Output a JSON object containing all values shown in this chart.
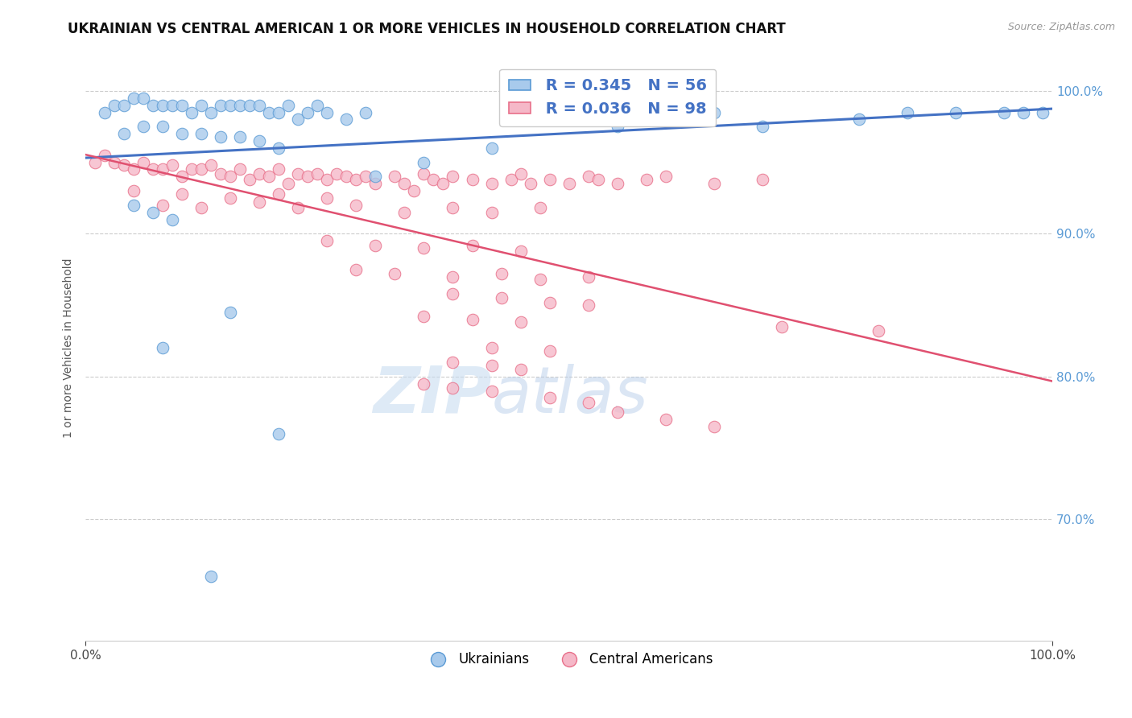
{
  "title": "UKRAINIAN VS CENTRAL AMERICAN 1 OR MORE VEHICLES IN HOUSEHOLD CORRELATION CHART",
  "source": "Source: ZipAtlas.com",
  "ylabel": "1 or more Vehicles in Household",
  "watermark_zip": "ZIP",
  "watermark_atlas": "atlas",
  "legend_blue_label": "Ukrainians",
  "legend_pink_label": "Central Americans",
  "blue_R": 0.345,
  "blue_N": 56,
  "pink_R": 0.036,
  "pink_N": 98,
  "xmin": 0.0,
  "xmax": 1.0,
  "ymin": 0.615,
  "ymax": 1.025,
  "ytick_labels": [
    "70.0%",
    "80.0%",
    "90.0%",
    "100.0%"
  ],
  "ytick_vals": [
    0.7,
    0.8,
    0.9,
    1.0
  ],
  "xtick_labels": [
    "0.0%",
    "100.0%"
  ],
  "xtick_vals": [
    0.0,
    1.0
  ],
  "blue_color": "#A8CAEC",
  "pink_color": "#F5B8C8",
  "blue_edge_color": "#5B9BD5",
  "pink_edge_color": "#E8708A",
  "blue_line_color": "#4472C4",
  "pink_line_color": "#E05070",
  "tick_color": "#5B9BD5",
  "background_color": "#FFFFFF",
  "blue_points_x": [
    0.02,
    0.03,
    0.04,
    0.05,
    0.06,
    0.07,
    0.08,
    0.09,
    0.1,
    0.11,
    0.12,
    0.13,
    0.14,
    0.15,
    0.16,
    0.17,
    0.18,
    0.19,
    0.2,
    0.21,
    0.22,
    0.23,
    0.24,
    0.25,
    0.27,
    0.29,
    0.04,
    0.06,
    0.08,
    0.1,
    0.12,
    0.14,
    0.16,
    0.18,
    0.2,
    0.3,
    0.35,
    0.42,
    0.5,
    0.55,
    0.6,
    0.65,
    0.7,
    0.8,
    0.85,
    0.9,
    0.95,
    0.97,
    0.99,
    0.05,
    0.07,
    0.09,
    0.15,
    0.2,
    0.08,
    0.13
  ],
  "blue_points_y": [
    0.985,
    0.99,
    0.99,
    0.995,
    0.995,
    0.99,
    0.99,
    0.99,
    0.99,
    0.985,
    0.99,
    0.985,
    0.99,
    0.99,
    0.99,
    0.99,
    0.99,
    0.985,
    0.985,
    0.99,
    0.98,
    0.985,
    0.99,
    0.985,
    0.98,
    0.985,
    0.97,
    0.975,
    0.975,
    0.97,
    0.97,
    0.968,
    0.968,
    0.965,
    0.96,
    0.94,
    0.95,
    0.96,
    0.98,
    0.975,
    0.985,
    0.985,
    0.975,
    0.98,
    0.985,
    0.985,
    0.985,
    0.985,
    0.985,
    0.92,
    0.915,
    0.91,
    0.845,
    0.76,
    0.82,
    0.66
  ],
  "pink_points_x": [
    0.01,
    0.02,
    0.03,
    0.04,
    0.05,
    0.06,
    0.07,
    0.08,
    0.09,
    0.1,
    0.11,
    0.12,
    0.13,
    0.14,
    0.15,
    0.16,
    0.17,
    0.18,
    0.19,
    0.2,
    0.21,
    0.22,
    0.23,
    0.24,
    0.25,
    0.26,
    0.27,
    0.28,
    0.29,
    0.3,
    0.32,
    0.33,
    0.34,
    0.35,
    0.36,
    0.37,
    0.38,
    0.4,
    0.42,
    0.44,
    0.45,
    0.46,
    0.48,
    0.5,
    0.52,
    0.53,
    0.55,
    0.58,
    0.6,
    0.65,
    0.7,
    0.05,
    0.1,
    0.15,
    0.2,
    0.25,
    0.08,
    0.12,
    0.18,
    0.22,
    0.28,
    0.33,
    0.38,
    0.42,
    0.47,
    0.25,
    0.3,
    0.35,
    0.4,
    0.45,
    0.28,
    0.32,
    0.38,
    0.43,
    0.47,
    0.52,
    0.38,
    0.43,
    0.48,
    0.52,
    0.35,
    0.4,
    0.45,
    0.72,
    0.82,
    0.42,
    0.48,
    0.38,
    0.42,
    0.45,
    0.35,
    0.38,
    0.42,
    0.48,
    0.52,
    0.55,
    0.6,
    0.65
  ],
  "pink_points_y": [
    0.95,
    0.955,
    0.95,
    0.948,
    0.945,
    0.95,
    0.945,
    0.945,
    0.948,
    0.94,
    0.945,
    0.945,
    0.948,
    0.942,
    0.94,
    0.945,
    0.938,
    0.942,
    0.94,
    0.945,
    0.935,
    0.942,
    0.94,
    0.942,
    0.938,
    0.942,
    0.94,
    0.938,
    0.94,
    0.935,
    0.94,
    0.935,
    0.93,
    0.942,
    0.938,
    0.935,
    0.94,
    0.938,
    0.935,
    0.938,
    0.942,
    0.935,
    0.938,
    0.935,
    0.94,
    0.938,
    0.935,
    0.938,
    0.94,
    0.935,
    0.938,
    0.93,
    0.928,
    0.925,
    0.928,
    0.925,
    0.92,
    0.918,
    0.922,
    0.918,
    0.92,
    0.915,
    0.918,
    0.915,
    0.918,
    0.895,
    0.892,
    0.89,
    0.892,
    0.888,
    0.875,
    0.872,
    0.87,
    0.872,
    0.868,
    0.87,
    0.858,
    0.855,
    0.852,
    0.85,
    0.842,
    0.84,
    0.838,
    0.835,
    0.832,
    0.82,
    0.818,
    0.81,
    0.808,
    0.805,
    0.795,
    0.792,
    0.79,
    0.785,
    0.782,
    0.775,
    0.77,
    0.765
  ]
}
